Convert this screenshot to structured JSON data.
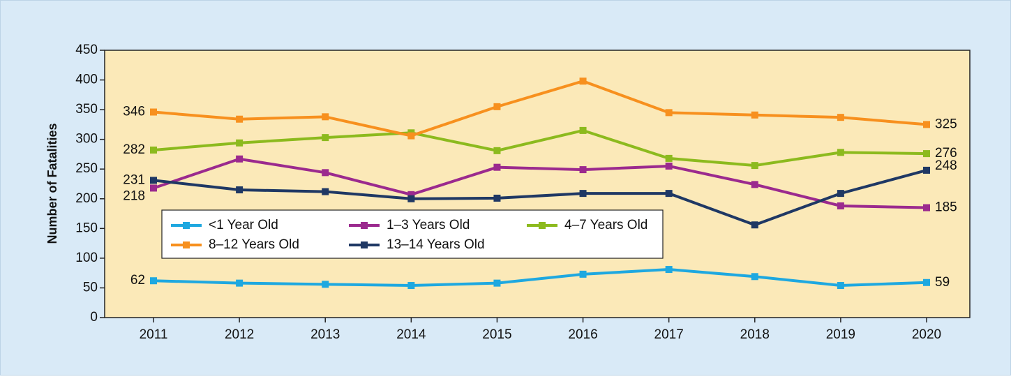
{
  "chart_data": {
    "type": "line",
    "y_label": "Number of Fatalities",
    "categories": [
      "2011",
      "2012",
      "2013",
      "2014",
      "2015",
      "2016",
      "2017",
      "2018",
      "2019",
      "2020"
    ],
    "ylim": [
      0,
      450
    ],
    "yticks": [
      0,
      50,
      100,
      150,
      200,
      250,
      300,
      350,
      400,
      450
    ],
    "series": [
      {
        "name": "<1 Year Old",
        "color": "#1ea8e0",
        "values": [
          62,
          58,
          56,
          54,
          58,
          73,
          81,
          69,
          54,
          59
        ]
      },
      {
        "name": "1–3 Years Old",
        "color": "#9b2a8e",
        "values": [
          218,
          267,
          244,
          207,
          253,
          249,
          255,
          224,
          188,
          185
        ]
      },
      {
        "name": "4–7 Years Old",
        "color": "#8cba1e",
        "values": [
          282,
          294,
          303,
          311,
          281,
          315,
          268,
          256,
          278,
          276
        ]
      },
      {
        "name": "8–12 Years Old",
        "color": "#f7901e",
        "values": [
          346,
          334,
          338,
          306,
          355,
          398,
          345,
          341,
          337,
          325
        ]
      },
      {
        "name": "13–14 Years Old",
        "color": "#1f3864",
        "values": [
          231,
          215,
          212,
          200,
          201,
          209,
          209,
          156,
          209,
          248
        ]
      }
    ]
  }
}
